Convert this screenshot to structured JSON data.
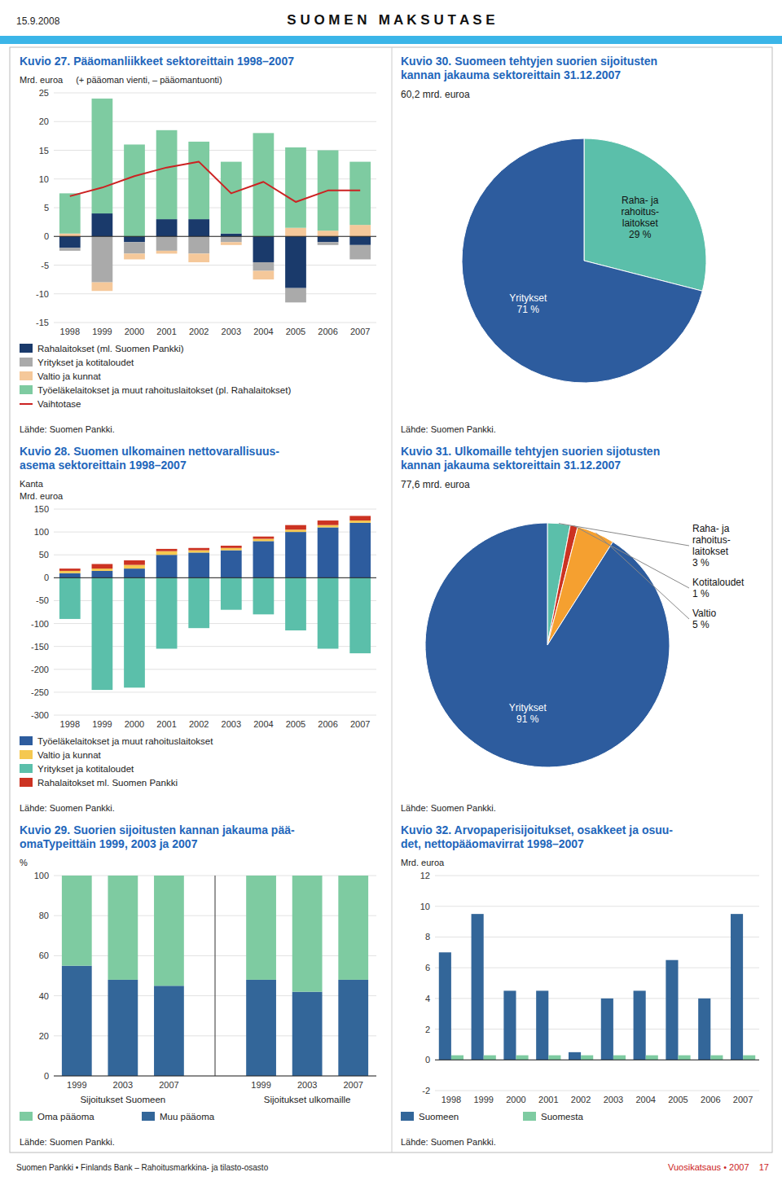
{
  "title": "S U O M E N   M A K S U T A S E",
  "annotations": [
    "15.9.2008",
    "Suomen Pankki • Finlands Bank – Rahoitusmarkkina- ja tilasto-osasto",
    "Vuosikatsaus • 2007    17"
  ],
  "chart_data": [
    {
      "type": "bar",
      "stacked": true,
      "title": "Kuvio 27. Pääomanliikkeet sektoreittain 1998–2007",
      "ylabel": "Mrd. euroa",
      "subtitle": "(+ pääoman vienti, – pääomantuonti)",
      "categories": [
        "1998",
        "1999",
        "2000",
        "2001",
        "2002",
        "2003",
        "2004",
        "2005",
        "2006",
        "2007"
      ],
      "series": [
        {
          "name": "Rahalaitokset (ml. Suomen Pankki)",
          "color": "#1a3a6b",
          "values": [
            -2.0,
            4.0,
            -1.0,
            3.0,
            3.0,
            0.5,
            -4.5,
            -9.0,
            -1.0,
            -1.5
          ]
        },
        {
          "name": "Yritykset ja kotitaloudet",
          "color": "#aaaaaa",
          "values": [
            -0.5,
            -8.0,
            -2.0,
            -2.5,
            -3.0,
            -1.0,
            -1.5,
            -2.5,
            -0.5,
            -2.5
          ]
        },
        {
          "name": "Valtio ja kunnat",
          "color": "#f5c89a",
          "values": [
            0.5,
            -1.5,
            -1.0,
            -0.5,
            -1.5,
            -0.5,
            -1.5,
            1.5,
            1.0,
            2.0
          ]
        },
        {
          "name": "Työeläkelaitokset ja muut rahoituslaitokset (pl. Rahalaitokset)",
          "color": "#7ecba1",
          "values": [
            7.0,
            20.0,
            16.0,
            15.5,
            13.5,
            12.5,
            18.0,
            14.0,
            14.0,
            11.0
          ]
        },
        {
          "name": "Vaihtotase",
          "type": "line",
          "color": "#cc2222",
          "values": [
            7.0,
            8.5,
            10.5,
            12.0,
            13.0,
            7.5,
            9.5,
            6.0,
            8.0,
            8.0
          ]
        }
      ],
      "ylim": [
        -15,
        25
      ],
      "yticks": [
        -15,
        -10,
        -5,
        0,
        5,
        10,
        15,
        20,
        25
      ],
      "grid": true,
      "legend": "bottom",
      "annotations": [
        "Lähde: Suomen Pankki."
      ]
    },
    {
      "type": "pie",
      "title": "Kuvio 30. Suomeen tehtyjen suorien sijoitusten\nkannan jakauma sektoreittain 31.12.2007",
      "subtitle": "60,2 mrd. euroa",
      "values": [
        29,
        71
      ],
      "colors": [
        "#5bbfaa",
        "#2d5c9e"
      ],
      "data_labels": true,
      "value_labels": [
        "Raha- ja\nrahoitus-\nlaitokset\n29 %",
        "Yritykset\n71 %"
      ],
      "annotations": [
        "Lähde: Suomen Pankki."
      ]
    },
    {
      "type": "bar",
      "stacked": true,
      "title": "Kuvio 28. Suomen ulkomainen nettovarallisuus-\nasema sektoreittain 1998–2007",
      "subtitle": "Kanta",
      "ylabel": "Mrd. euroa",
      "categories": [
        "1998",
        "1999",
        "2000",
        "2001",
        "2002",
        "2003",
        "2004",
        "2005",
        "2006",
        "2007"
      ],
      "series": [
        {
          "name": "Työeläkelaitokset ja muut rahoituslaitokset",
          "color": "#2d5c9e",
          "values": [
            10,
            15,
            20,
            50,
            55,
            60,
            80,
            100,
            110,
            120
          ]
        },
        {
          "name": "Valtio ja kunnat",
          "color": "#f5c850",
          "values": [
            5,
            5,
            8,
            8,
            5,
            5,
            5,
            5,
            5,
            5
          ]
        },
        {
          "name": "Yritykset ja kotitaloudet",
          "color": "#5bbfaa",
          "values": [
            -90,
            -245,
            -240,
            -155,
            -110,
            -70,
            -80,
            -115,
            -155,
            -165
          ]
        },
        {
          "name": "Rahalaitokset ml. Suomen Pankki",
          "color": "#cc3322",
          "values": [
            5,
            10,
            10,
            5,
            5,
            5,
            5,
            10,
            10,
            10
          ]
        }
      ],
      "ylim": [
        -300,
        150
      ],
      "yticks": [
        -300,
        -250,
        -200,
        -150,
        -100,
        -50,
        0,
        50,
        100,
        150
      ],
      "grid": true,
      "legend": "bottom",
      "annotations": [
        "Lähde: Suomen Pankki."
      ]
    },
    {
      "type": "pie",
      "title": "Kuvio 31. Ulkomaille tehtyjen suorien sijotusten\nkannan jakauma sektoreittain 31.12.2007",
      "subtitle": "77,6 mrd. euroa",
      "values": [
        3,
        1,
        5,
        91
      ],
      "colors": [
        "#5bbfaa",
        "#cc3322",
        "#f5a030",
        "#2d5c9e"
      ],
      "data_labels": true,
      "value_labels": [
        "Raha- ja\nrahoitus-\nlaitokset\n3 %",
        "Kotitaloudet\n1 %",
        "Valtio\n5 %",
        "Yritykset\n91 %"
      ],
      "annotations": [
        "Lähde: Suomen Pankki."
      ]
    },
    {
      "type": "bar",
      "stacked": true,
      "title": "Kuvio 29. Suorien sijoitusten kannan jakauma pää-\nomaTypeittäin 1999, 2003 ja 2007",
      "ylabel": "%",
      "categories": [
        "1999",
        "2003",
        "2007",
        "1999",
        "2003",
        "2007"
      ],
      "series": [
        {
          "name": "Oma pääoma",
          "color": "#7ecba1",
          "values": [
            45,
            52,
            55,
            52,
            58,
            52
          ]
        },
        {
          "name": "Muu pääoma",
          "color": "#336699",
          "values": [
            55,
            48,
            45,
            48,
            42,
            48
          ]
        }
      ],
      "ylim": [
        0,
        100
      ],
      "yticks": [
        0,
        20,
        40,
        60,
        80,
        100
      ],
      "grid": true,
      "legend": "bottom",
      "annotations": [
        "Sijoitukset Suomeen",
        "Sijoitukset ulkomaille",
        "Lähde: Suomen Pankki."
      ]
    },
    {
      "type": "bar",
      "stacked": false,
      "title": "Kuvio 32. Arvopaperisijoitukset, osakkeet ja osuu-\ndet, nettopääomavirrat 1998–2007",
      "ylabel": "Mrd. euroa",
      "categories": [
        "1998",
        "1999",
        "2000",
        "2001",
        "2002",
        "2003",
        "2004",
        "2005",
        "2006",
        "2007"
      ],
      "series": [
        {
          "name": "Suomeen",
          "color": "#336699",
          "values": [
            7.0,
            9.5,
            4.5,
            4.5,
            0.5,
            4.0,
            4.5,
            6.5,
            4.0,
            9.5
          ]
        },
        {
          "name": "Suomesta",
          "color": "#7ecba1",
          "values": [
            0.3,
            0.3,
            0.3,
            0.3,
            0.3,
            0.3,
            0.3,
            0.3,
            0.3,
            0.3
          ]
        }
      ],
      "ylim": [
        -2,
        12
      ],
      "yticks": [
        -2,
        0,
        2,
        4,
        6,
        8,
        10,
        12
      ],
      "grid": true,
      "legend": "bottom",
      "annotations": [
        "Lähde: Suomen Pankki."
      ]
    }
  ]
}
